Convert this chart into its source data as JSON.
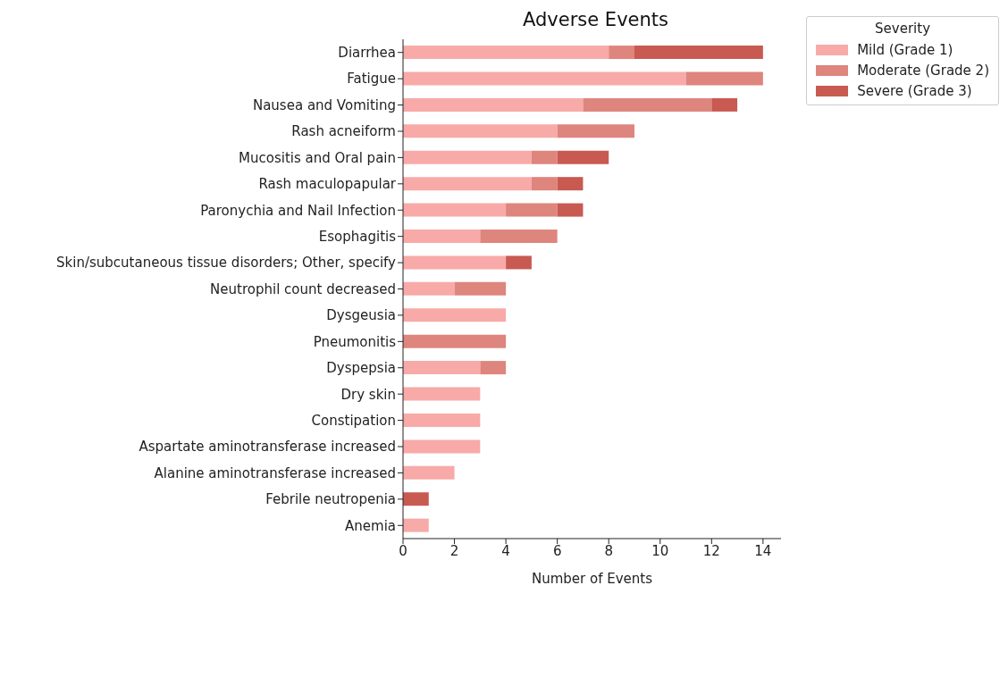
{
  "chart_data": {
    "type": "bar",
    "orientation": "horizontal",
    "stacked": true,
    "title": "Adverse Events",
    "xlabel": "Number of Events",
    "legend_title": "Severity",
    "legend": "top right",
    "grid": false,
    "categories": [
      "Diarrhea",
      "Fatigue",
      "Nausea and Vomiting",
      "Rash acneiform",
      "Mucositis and Oral pain",
      "Rash maculopapular",
      "Paronychia and Nail Infection",
      "Esophagitis",
      "Skin/subcutaneous tissue disorders; Other, specify",
      "Neutrophil count decreased",
      "Dysgeusia",
      "Pneumonitis",
      "Dyspepsia",
      "Dry skin",
      "Constipation",
      "Aspartate aminotransferase increased",
      "Alanine aminotransferase increased",
      "Febrile neutropenia",
      "Anemia"
    ],
    "series": [
      {
        "name": "Mild (Grade 1)",
        "color": "#f8aaa8",
        "values": [
          8,
          11,
          7,
          6,
          5,
          5,
          4,
          3,
          4,
          2,
          4,
          0,
          3,
          3,
          3,
          3,
          2,
          0,
          1
        ]
      },
      {
        "name": "Moderate (Grade 2)",
        "color": "#de857e",
        "values": [
          1,
          3,
          5,
          3,
          1,
          1,
          2,
          3,
          0,
          2,
          0,
          4,
          1,
          0,
          0,
          0,
          0,
          0,
          0
        ]
      },
      {
        "name": "Severe (Grade 3)",
        "color": "#c85a52",
        "values": [
          5,
          0,
          1,
          0,
          2,
          1,
          1,
          0,
          1,
          0,
          0,
          0,
          0,
          0,
          0,
          0,
          0,
          1,
          0
        ]
      }
    ],
    "xlim": [
      0,
      14.7
    ],
    "xticks": [
      0,
      2,
      4,
      6,
      8,
      10,
      12,
      14
    ]
  }
}
